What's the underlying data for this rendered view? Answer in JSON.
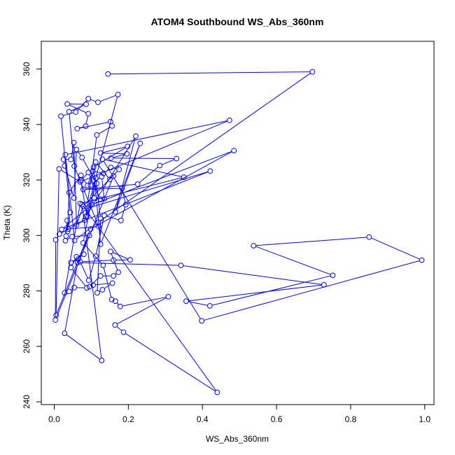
{
  "chart_data": {
    "type": "line",
    "title": "ATOM4 Southbound WS_Abs_360nm",
    "xlabel": "WS_Abs_360nm",
    "ylabel": "Theta (K)",
    "xlim": [
      -0.035,
      1.025
    ],
    "ylim": [
      239,
      370
    ],
    "xticks": [
      0.0,
      0.2,
      0.4,
      0.6,
      0.8,
      1.0
    ],
    "xtick_labels": [
      "0.0",
      "0.2",
      "0.4",
      "0.6",
      "0.8",
      "1.0"
    ],
    "yticks": [
      240,
      260,
      280,
      300,
      320,
      340,
      360
    ],
    "ytick_labels": [
      "240",
      "260",
      "280",
      "300",
      "320",
      "340",
      "360"
    ],
    "grid": false,
    "series_color": "#0000ff",
    "marker": "open-circle",
    "points": [
      [
        0.145,
        358.2
      ],
      [
        0.697,
        359.0
      ],
      [
        0.118,
        304.7
      ],
      [
        0.055,
        298.2
      ],
      [
        0.03,
        329.1
      ],
      [
        0.473,
        341.5
      ],
      [
        0.07,
        319.3
      ],
      [
        0.013,
        324.0
      ],
      [
        0.005,
        271.2
      ],
      [
        0.098,
        302.3
      ],
      [
        0.485,
        330.6
      ],
      [
        0.102,
        311.1
      ],
      [
        0.02,
        302.2
      ],
      [
        0.421,
        323.2
      ],
      [
        0.09,
        309.8
      ],
      [
        0.172,
        350.8
      ],
      [
        0.118,
        348.0
      ],
      [
        0.092,
        349.3
      ],
      [
        0.058,
        344.5
      ],
      [
        0.018,
        343.0
      ],
      [
        0.043,
        308.3
      ],
      [
        0.038,
        302.3
      ],
      [
        0.12,
        303.2
      ],
      [
        0.054,
        325.0
      ],
      [
        0.04,
        344.6
      ],
      [
        0.086,
        347.3
      ],
      [
        0.035,
        347.4
      ],
      [
        0.092,
        343.9
      ],
      [
        0.085,
        339.4
      ],
      [
        0.062,
        338.5
      ],
      [
        0.152,
        341.0
      ],
      [
        0.156,
        339.5
      ],
      [
        0.115,
        336.2
      ],
      [
        0.085,
        306.8
      ],
      [
        0.22,
        335.8
      ],
      [
        0.165,
        308.5
      ],
      [
        0.232,
        333.2
      ],
      [
        0.125,
        296.8
      ],
      [
        0.106,
        324.6
      ],
      [
        0.198,
        332.1
      ],
      [
        0.125,
        329.7
      ],
      [
        0.196,
        329.4
      ],
      [
        0.153,
        327.9
      ],
      [
        0.33,
        327.7
      ],
      [
        0.285,
        325.2
      ],
      [
        0.225,
        318.5
      ],
      [
        0.078,
        316.6
      ],
      [
        0.183,
        317.0
      ],
      [
        0.193,
        311.1
      ],
      [
        0.18,
        305.4
      ],
      [
        0.135,
        307.2
      ],
      [
        0.112,
        292.5
      ],
      [
        0.093,
        283.8
      ],
      [
        0.07,
        290.5
      ],
      [
        0.16,
        291.1
      ],
      [
        0.205,
        291.2
      ],
      [
        0.152,
        294.2
      ],
      [
        0.173,
        286.7
      ],
      [
        0.16,
        285.4
      ],
      [
        0.125,
        285.4
      ],
      [
        0.095,
        281.5
      ],
      [
        0.105,
        282.1
      ],
      [
        0.157,
        282.8
      ],
      [
        0.13,
        280.4
      ],
      [
        0.116,
        279.3
      ],
      [
        0.125,
        306.1
      ],
      [
        0.112,
        320.7
      ],
      [
        0.078,
        297.3
      ],
      [
        0.132,
        289.2
      ],
      [
        0.155,
        276.9
      ],
      [
        0.165,
        276.3
      ],
      [
        0.178,
        274.4
      ],
      [
        0.308,
        277.9
      ],
      [
        0.164,
        267.7
      ],
      [
        0.187,
        265.1
      ],
      [
        0.44,
        243.4
      ],
      [
        0.075,
        311.2
      ],
      [
        0.128,
        254.9
      ],
      [
        0.028,
        264.7
      ],
      [
        0.063,
        290.2
      ],
      [
        0.342,
        289.2
      ],
      [
        0.728,
        282.2
      ],
      [
        0.356,
        276.3
      ],
      [
        0.42,
        274.6
      ],
      [
        0.752,
        285.6
      ],
      [
        0.538,
        296.3
      ],
      [
        0.85,
        299.4
      ],
      [
        0.992,
        291.1
      ],
      [
        0.398,
        269.2
      ],
      [
        0.13,
        327.5
      ],
      [
        0.35,
        321.0
      ],
      [
        0.07,
        311.5
      ],
      [
        0.028,
        279.3
      ],
      [
        0.04,
        279.8
      ],
      [
        0.054,
        281.2
      ],
      [
        0.088,
        281.1
      ],
      [
        0.045,
        288.4
      ],
      [
        0.06,
        292.3
      ],
      [
        0.08,
        293.2
      ],
      [
        0.045,
        290.2
      ],
      [
        0.065,
        291.5
      ],
      [
        0.095,
        300.0
      ],
      [
        0.048,
        299.6
      ],
      [
        0.03,
        298.1
      ],
      [
        0.032,
        299.8
      ],
      [
        0.035,
        305.4
      ],
      [
        0.036,
        301.4
      ],
      [
        0.04,
        315.5
      ],
      [
        0.072,
        321.7
      ],
      [
        0.09,
        318.0
      ],
      [
        0.104,
        323.2
      ],
      [
        0.133,
        322.4
      ],
      [
        0.153,
        324.5
      ],
      [
        0.175,
        323.8
      ],
      [
        0.078,
        310.5
      ],
      [
        0.06,
        303.8
      ],
      [
        0.053,
        333.5
      ],
      [
        0.045,
        327.4
      ],
      [
        0.025,
        327.4
      ],
      [
        0.028,
        325.1
      ],
      [
        0.053,
        313.5
      ],
      [
        0.06,
        331.0
      ],
      [
        0.075,
        328.1
      ],
      [
        0.115,
        318.7
      ],
      [
        0.082,
        305.5
      ],
      [
        0.014,
        300.5
      ],
      [
        0.004,
        298.4
      ],
      [
        0.003,
        269.5
      ],
      [
        0.16,
        321.4
      ],
      [
        0.15,
        320.2
      ],
      [
        0.112,
        326.5
      ],
      [
        0.098,
        318.1
      ],
      [
        0.128,
        321.2
      ],
      [
        0.135,
        313.2
      ],
      [
        0.108,
        313.5
      ],
      [
        0.088,
        307.0
      ],
      [
        0.072,
        319.8
      ],
      [
        0.092,
        322.7
      ],
      [
        0.125,
        313.0
      ]
    ]
  }
}
